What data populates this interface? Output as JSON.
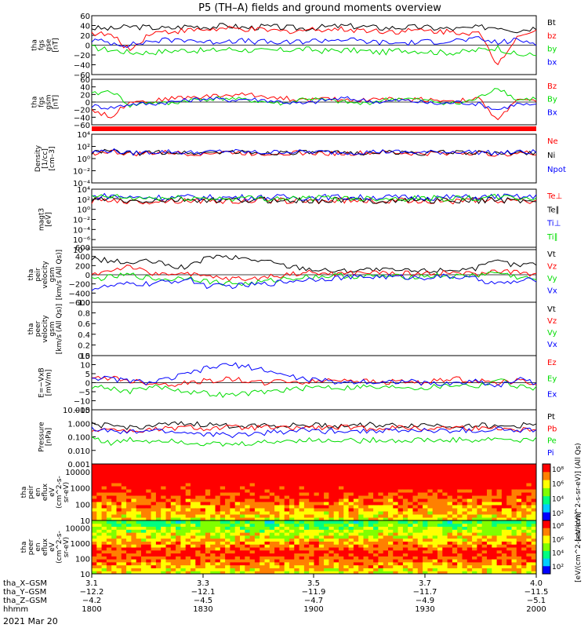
{
  "title": "P5 (TH–A) fields and ground moments overview",
  "date_label": "2021 Mar 20",
  "colors": {
    "black": "#000000",
    "red": "#ff0000",
    "green": "#00dd00",
    "blue": "#0000ff",
    "bar_red": "#ff0000"
  },
  "chart_data": [
    {
      "type": "line",
      "panel": "fgs",
      "ylabel": [
        "tha",
        "fgs",
        "gse",
        "[nT]"
      ],
      "ylim": [
        -60,
        60
      ],
      "yticks": [
        "60",
        "40",
        "20",
        "0",
        "−20",
        "−40",
        "−60"
      ],
      "ytick_values": [
        60,
        40,
        20,
        0,
        -20,
        -40,
        -60
      ],
      "series": [
        {
          "name": "Bt",
          "color": "#000000",
          "values": [
            35,
            33,
            38,
            36,
            34,
            39,
            37,
            40,
            35,
            38,
            36,
            34,
            37,
            39,
            38,
            35,
            36,
            37,
            34,
            33,
            36,
            38,
            30,
            36
          ]
        },
        {
          "name": "bz",
          "color": "#ff0000",
          "values": [
            25,
            20,
            -10,
            25,
            28,
            30,
            32,
            33,
            32,
            30,
            28,
            31,
            33,
            32,
            31,
            29,
            28,
            30,
            28,
            27,
            25,
            -40,
            20,
            28
          ]
        },
        {
          "name": "by",
          "color": "#00dd00",
          "values": [
            -5,
            -10,
            -15,
            -15,
            -12,
            -10,
            -12,
            -8,
            -10,
            -12,
            -10,
            -8,
            -12,
            -10,
            -12,
            -15,
            -10,
            -12,
            -15,
            -15,
            -10,
            -5,
            -20,
            -20
          ]
        },
        {
          "name": "bx",
          "color": "#0000ff",
          "values": [
            10,
            5,
            0,
            8,
            10,
            12,
            5,
            10,
            8,
            6,
            4,
            8,
            10,
            12,
            8,
            5,
            4,
            6,
            8,
            10,
            12,
            5,
            10,
            5
          ]
        }
      ]
    },
    {
      "type": "line",
      "panel": "fgs_gsm",
      "ylabel": [
        "tha",
        "fgs",
        "gsm",
        "[nT]"
      ],
      "ylim": [
        -60,
        60
      ],
      "yticks": [
        "60",
        "40",
        "20",
        "0",
        "−20",
        "−40",
        "−60"
      ],
      "ytick_values": [
        60,
        40,
        20,
        0,
        -20,
        -40,
        -60
      ],
      "series": [
        {
          "name": "Bz",
          "color": "#ff0000",
          "values": [
            -20,
            -40,
            5,
            0,
            10,
            12,
            15,
            18,
            20,
            15,
            10,
            5,
            8,
            6,
            5,
            10,
            5,
            8,
            5,
            3,
            10,
            -50,
            10,
            0
          ]
        },
        {
          "name": "By",
          "color": "#00dd00",
          "values": [
            20,
            30,
            -10,
            0,
            -5,
            5,
            8,
            10,
            5,
            0,
            -5,
            10,
            5,
            0,
            -5,
            5,
            10,
            5,
            0,
            -5,
            10,
            40,
            5,
            10
          ]
        },
        {
          "name": "Bx",
          "color": "#0000ff",
          "values": [
            -10,
            -15,
            -5,
            -5,
            0,
            5,
            10,
            5,
            8,
            5,
            0,
            -5,
            5,
            10,
            5,
            0,
            5,
            0,
            -5,
            0,
            -5,
            -20,
            -5,
            -10
          ]
        }
      ]
    },
    {
      "type": "line",
      "panel": "density",
      "ylabel": [
        "Density",
        "[1/cc]",
        "[cm–3]"
      ],
      "log": true,
      "ylim": [
        -5,
        4
      ],
      "yticks": [
        "10⁴",
        "10²",
        "10⁰",
        "10⁻²",
        "10⁻⁴"
      ],
      "series": [
        {
          "name": "Ne",
          "color": "#ff0000",
          "values": [
            0.5,
            0.8,
            0.3,
            0.5,
            0.6,
            0.4,
            0.5,
            0.7,
            0.5,
            0.4,
            0.6,
            0.5,
            0.5,
            0.4,
            0.5,
            0.6,
            0.5,
            0.4,
            0.5,
            0.6,
            0.5,
            0.3,
            0.5,
            0.5
          ]
        },
        {
          "name": "Ni",
          "color": "#000000",
          "values": [
            0.6,
            0.9,
            0.4,
            0.6,
            0.7,
            0.5,
            0.6,
            0.8,
            0.6,
            0.5,
            0.7,
            0.6,
            0.6,
            0.5,
            0.6,
            0.7,
            0.6,
            0.5,
            0.6,
            0.7,
            0.6,
            0.4,
            0.6,
            0.6
          ]
        },
        {
          "name": "Npot",
          "color": "#0000ff",
          "values": [
            0.7,
            1.0,
            0.5,
            0.7,
            0.8,
            0.6,
            0.7,
            0.9,
            0.7,
            0.6,
            0.8,
            0.7,
            0.7,
            0.6,
            0.7,
            0.8,
            0.7,
            0.6,
            0.7,
            0.8,
            0.7,
            0.5,
            0.7,
            0.7
          ]
        }
      ]
    },
    {
      "type": "line",
      "panel": "temperature",
      "ylabel": [
        "magt3",
        "[eV]"
      ],
      "log": true,
      "ylim": [
        -8,
        5
      ],
      "yticks": [
        "10⁴",
        "10²",
        "10⁰",
        "10⁻²",
        "10⁻⁴",
        "10⁻⁶",
        "10⁻⁸"
      ],
      "series": [
        {
          "name": "Te⊥",
          "color": "#ff0000",
          "values": [
            2.5,
            2.8,
            2.2,
            2.4,
            2.5,
            2.6,
            2.5,
            2.4,
            2.5,
            2.6,
            2.5,
            2.4,
            2.5,
            2.6,
            2.5,
            2.4,
            2.5,
            2.6,
            2.5,
            2.4,
            2.5,
            2.6,
            2.5,
            2.5
          ]
        },
        {
          "name": "Te∥",
          "color": "#000000",
          "values": [
            2.6,
            2.9,
            2.3,
            2.5,
            2.6,
            2.7,
            2.6,
            2.5,
            2.6,
            2.7,
            2.6,
            2.5,
            2.6,
            2.7,
            2.6,
            2.5,
            2.6,
            2.7,
            2.6,
            2.5,
            2.6,
            2.7,
            2.6,
            2.6
          ]
        },
        {
          "name": "Ti⊥",
          "color": "#0000ff",
          "values": [
            3.4,
            3.6,
            3.2,
            3.3,
            3.2,
            3.3,
            3.2,
            3.2,
            3.3,
            3.2,
            3.3,
            3.2,
            3.3,
            3.3,
            3.2,
            3.3,
            3.2,
            3.3,
            3.2,
            3.3,
            3.2,
            3.5,
            3.3,
            3.3
          ]
        },
        {
          "name": "Ti∥",
          "color": "#00dd00",
          "values": [
            3.2,
            3.4,
            3.0,
            3.1,
            3.0,
            3.1,
            3.0,
            3.0,
            3.1,
            3.0,
            3.1,
            3.0,
            3.1,
            3.1,
            3.0,
            3.1,
            3.0,
            3.1,
            3.0,
            3.1,
            3.0,
            3.3,
            3.1,
            3.1
          ]
        }
      ]
    },
    {
      "type": "line",
      "panel": "peir_velocity",
      "ylabel": [
        "tha",
        "peir",
        "velocity",
        "gsm",
        "[km/s (All Qs)]"
      ],
      "ylim": [
        -600,
        600
      ],
      "yticks": [
        "600",
        "400",
        "200",
        "0",
        "−200",
        "−400",
        "−600"
      ],
      "ytick_values": [
        600,
        400,
        200,
        0,
        -200,
        -400,
        -600
      ],
      "series": [
        {
          "name": "Vt",
          "color": "#000000",
          "values": [
            350,
            300,
            250,
            300,
            200,
            150,
            400,
            380,
            350,
            300,
            200,
            150,
            100,
            80,
            120,
            100,
            90,
            80,
            100,
            120,
            150,
            300,
            200,
            250
          ]
        },
        {
          "name": "Vz",
          "color": "#ff0000",
          "values": [
            0,
            100,
            200,
            0,
            50,
            0,
            -50,
            -80,
            -100,
            -50,
            0,
            50,
            30,
            20,
            50,
            40,
            30,
            20,
            50,
            40,
            0,
            100,
            50,
            0
          ]
        },
        {
          "name": "Vy",
          "color": "#00dd00",
          "values": [
            -100,
            -50,
            0,
            -80,
            -100,
            -50,
            -150,
            -180,
            -200,
            -150,
            -80,
            -50,
            -30,
            -20,
            -40,
            -30,
            -50,
            -30,
            -20,
            -40,
            0,
            50,
            -50,
            -100
          ]
        },
        {
          "name": "Vx",
          "color": "#0000ff",
          "values": [
            -300,
            -250,
            -200,
            -200,
            -150,
            -100,
            -250,
            -250,
            -230,
            -200,
            -150,
            -100,
            -80,
            -60,
            -50,
            -40,
            -50,
            -60,
            -40,
            -50,
            -100,
            -200,
            -150,
            -100
          ]
        }
      ]
    },
    {
      "type": "line",
      "panel": "peer_velocity",
      "ylabel": [
        "tha",
        "peer",
        "velocity",
        "gsm",
        "[km/s (All Qs)]"
      ],
      "ylim": [
        0,
        1
      ],
      "yticks": [
        "1.0",
        "0.8",
        "0.6",
        "0.4",
        "0.2",
        "0.0"
      ],
      "ytick_values": [
        1.0,
        0.8,
        0.6,
        0.4,
        0.2,
        0.0
      ],
      "series": [
        {
          "name": "Vt",
          "color": "#000000",
          "values": []
        },
        {
          "name": "Vz",
          "color": "#ff0000",
          "values": []
        },
        {
          "name": "Vy",
          "color": "#00dd00",
          "values": []
        },
        {
          "name": "Vx",
          "color": "#0000ff",
          "values": []
        }
      ]
    },
    {
      "type": "line",
      "panel": "efield",
      "ylabel": [
        "E=−VxB",
        "[mV/m]"
      ],
      "ylim": [
        -15,
        15
      ],
      "yticks": [
        "15",
        "10",
        "5",
        "0",
        "−5",
        "−10",
        "−15"
      ],
      "ytick_values": [
        15,
        10,
        5,
        0,
        -5,
        -10,
        -15
      ],
      "series": [
        {
          "name": "Ez",
          "color": "#ff0000",
          "values": [
            2,
            3,
            1,
            0,
            -1,
            0,
            1,
            2,
            1,
            0,
            1,
            0,
            1,
            2,
            1,
            0,
            1,
            0,
            1,
            2,
            1,
            0,
            1,
            0
          ]
        },
        {
          "name": "Ey",
          "color": "#00dd00",
          "values": [
            -2,
            -3,
            -5,
            -2,
            -3,
            -5,
            -6,
            -7,
            -6,
            -5,
            -4,
            -3,
            -2,
            -3,
            -2,
            -3,
            -2,
            -3,
            -2,
            -1,
            -2,
            2,
            -2,
            -3
          ]
        },
        {
          "name": "Ex",
          "color": "#0000ff",
          "values": [
            3,
            2,
            1,
            0,
            2,
            5,
            8,
            10,
            9,
            7,
            4,
            2,
            1,
            0,
            1,
            0,
            1,
            0,
            -1,
            0,
            1,
            -2,
            2,
            0
          ]
        }
      ]
    },
    {
      "type": "line",
      "panel": "pressure",
      "ylabel": [
        "Pressure",
        "[nPa]"
      ],
      "log": true,
      "ylim": [
        -3,
        1
      ],
      "yticks": [
        "10.000",
        "1.000",
        "0.100",
        "0.010",
        "0.001"
      ],
      "ytick_values": [
        1,
        0,
        -1,
        -2,
        -3
      ],
      "series": [
        {
          "name": "Pt",
          "color": "#000000",
          "values": [
            -0.1,
            -0.2,
            -0.3,
            -0.2,
            -0.1,
            -0.05,
            -0.1,
            -0.2,
            -0.15,
            -0.1,
            -0.2,
            -0.1,
            -0.15,
            -0.2,
            -0.1,
            -0.15,
            -0.2,
            -0.1,
            -0.15,
            -0.2,
            -0.1,
            -0.3,
            -0.15,
            -0.1
          ]
        },
        {
          "name": "Pb",
          "color": "#ff0000",
          "values": [
            -0.5,
            -0.4,
            -0.6,
            -0.5,
            -0.4,
            -0.3,
            -0.4,
            -0.3,
            -0.35,
            -0.3,
            -0.4,
            -0.3,
            -0.35,
            -0.3,
            -0.4,
            -0.35,
            -0.3,
            -0.4,
            -0.35,
            -0.3,
            -0.4,
            -0.3,
            -0.5,
            -0.4
          ]
        },
        {
          "name": "Pe",
          "color": "#00dd00",
          "values": [
            -1.0,
            -1.5,
            -1.2,
            -1.3,
            -1.2,
            -1.4,
            -1.5,
            -1.6,
            -1.5,
            -1.4,
            -1.3,
            -1.2,
            -1.3,
            -1.2,
            -1.3,
            -1.2,
            -1.3,
            -1.2,
            -1.3,
            -1.2,
            -1.3,
            -1.1,
            -1.3,
            -1.2
          ]
        },
        {
          "name": "Pi",
          "color": "#0000ff",
          "values": [
            -0.4,
            -0.6,
            -0.7,
            -0.5,
            -0.6,
            -0.7,
            -0.8,
            -0.9,
            -0.8,
            -0.7,
            -0.6,
            -0.5,
            -0.6,
            -0.5,
            -0.6,
            -0.5,
            -0.6,
            -0.5,
            -0.6,
            -0.5,
            -0.6,
            -0.4,
            -0.6,
            -0.5
          ]
        }
      ]
    },
    {
      "type": "heatmap",
      "panel": "peir_spec",
      "ylabel": [
        "tha",
        "peir",
        "en",
        "eflux",
        "eV",
        "(cm^2-s-",
        "sr-eV)"
      ],
      "log": true,
      "ylim": [
        10,
        30000
      ],
      "yticks": [
        "10000",
        "1000",
        "100",
        "10"
      ],
      "colorbar": {
        "ticks": [
          "10⁸",
          "10⁶",
          "10⁴",
          "10²"
        ],
        "label": "[eV/(cm^2-s-sr-eV)] (All Qs)"
      }
    },
    {
      "type": "heatmap",
      "panel": "peer_spec",
      "ylabel": [
        "tha",
        "peer",
        "en",
        "eflux",
        "eV",
        "(cm^2-s-",
        "sr-eV)"
      ],
      "log": true,
      "ylim": [
        10,
        30000
      ],
      "yticks": [
        "10000",
        "1000",
        "100",
        "10"
      ],
      "colorbar": {
        "ticks": [
          "10⁸",
          "10⁶",
          "10⁴",
          "10²"
        ],
        "label": "[eV/(cm^2-s-sr-eV)]"
      }
    }
  ],
  "xaxis": {
    "rows": [
      {
        "label": "tha_X–GSM",
        "values": [
          "3.1",
          "3.3",
          "3.5",
          "3.7",
          "4.0"
        ]
      },
      {
        "label": "tha_Y–GSM",
        "values": [
          "−12.2",
          "−12.1",
          "−11.9",
          "−11.7",
          "−11.5"
        ]
      },
      {
        "label": "tha_Z–GSM",
        "values": [
          "−4.2",
          "−4.5",
          "−4.7",
          "−4.9",
          "−5.1"
        ]
      },
      {
        "label": "hhmm",
        "values": [
          "1800",
          "1830",
          "1900",
          "1930",
          "2000"
        ]
      }
    ],
    "time_range": [
      1800,
      2000
    ]
  }
}
